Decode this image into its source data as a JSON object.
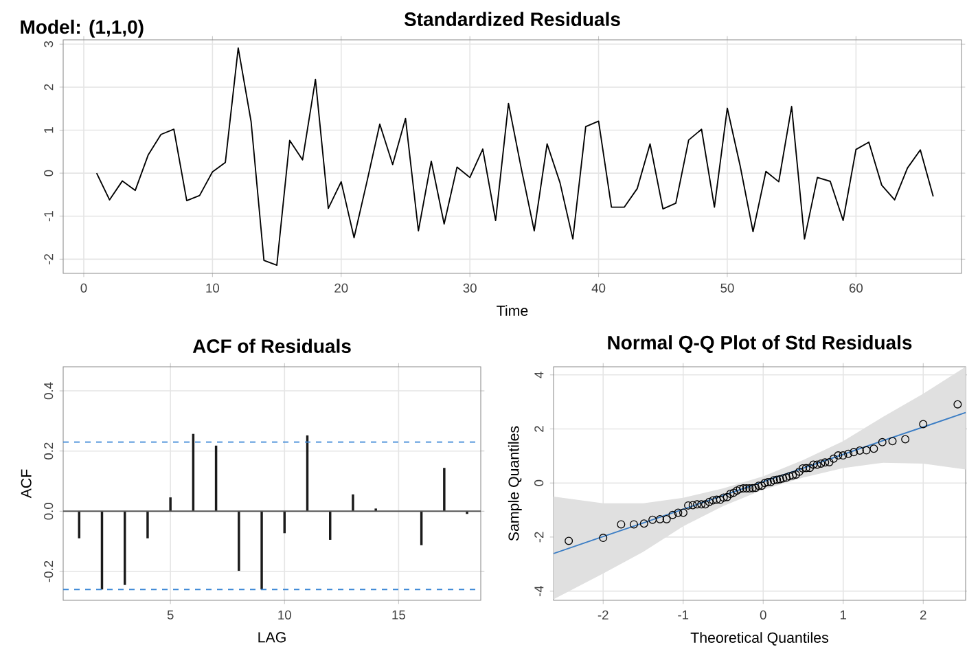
{
  "chart_data": [
    {
      "type": "line",
      "title": "Standardized Residuals",
      "xlabel": "Time",
      "annotations": [
        "Model: (1,1,0)"
      ],
      "x": [
        1,
        2,
        3,
        4,
        5,
        6,
        7,
        8,
        9,
        10,
        11,
        12,
        13,
        14,
        15,
        16,
        17,
        18,
        19,
        20,
        21,
        22,
        23,
        24,
        25,
        26,
        27,
        28,
        29,
        30,
        31,
        32,
        33,
        34,
        35,
        36,
        37,
        38,
        39,
        40,
        41,
        42,
        43,
        44,
        45,
        46,
        47,
        48,
        49,
        50,
        51,
        52,
        53,
        54,
        55,
        56,
        57,
        58,
        59,
        60,
        61,
        62,
        63,
        64,
        65,
        66
      ],
      "values": [
        0.0,
        -0.62,
        -0.18,
        -0.4,
        0.42,
        0.9,
        1.02,
        -0.64,
        -0.52,
        0.03,
        0.25,
        2.91,
        1.2,
        -2.03,
        -2.14,
        0.76,
        0.31,
        2.18,
        -0.82,
        -0.2,
        -1.5,
        -0.2,
        1.14,
        0.2,
        1.27,
        -1.34,
        0.28,
        -1.18,
        0.14,
        -0.1,
        0.56,
        -1.1,
        1.62,
        0.1,
        -1.34,
        0.68,
        -0.22,
        -1.53,
        1.08,
        1.21,
        -0.79,
        -0.79,
        -0.36,
        0.68,
        -0.83,
        -0.7,
        0.77,
        1.02,
        -0.79,
        1.51,
        0.17,
        -1.36,
        0.04,
        -0.2,
        1.55,
        -1.53,
        -0.1,
        -0.19,
        -1.1,
        0.55,
        0.72,
        -0.28,
        -0.62,
        0.12,
        0.54,
        -0.54
      ],
      "color": "#000000",
      "xlim": [
        -1.6,
        68.2
      ],
      "ylim": [
        -2.33,
        3.1
      ],
      "xticks": [
        0,
        10,
        20,
        30,
        40,
        50,
        60
      ],
      "yticks": [
        -2,
        -1,
        0,
        1,
        2,
        3
      ],
      "grid": true
    },
    {
      "type": "bar",
      "title": "ACF of Residuals",
      "xlabel": "LAG",
      "ylabel": "ACF",
      "x": [
        1,
        2,
        3,
        4,
        5,
        6,
        7,
        8,
        9,
        10,
        11,
        12,
        13,
        14,
        15,
        16,
        17,
        18
      ],
      "values": [
        -0.09,
        -0.26,
        -0.245,
        -0.09,
        0.046,
        0.257,
        0.218,
        -0.198,
        -0.26,
        -0.073,
        0.252,
        -0.095,
        0.056,
        0.009,
        0.0,
        -0.113,
        0.144,
        -0.009
      ],
      "color": "#1a1a1a",
      "xlim": [
        0.3,
        18.6
      ],
      "ylim": [
        -0.296,
        0.48
      ],
      "xticks": [
        5,
        10,
        15
      ],
      "yticks": [
        -0.2,
        {
          "value": 0,
          "label": "0.0"
        },
        0.2,
        0.4
      ],
      "grid": true,
      "ref_lines": [
        {
          "axis": "y",
          "value": 0.23,
          "color": "#3a86d6",
          "line_style": "dashed"
        },
        {
          "axis": "y",
          "value": -0.26,
          "color": "#3a86d6",
          "line_style": "dashed"
        },
        {
          "axis": "y",
          "value": 0,
          "color": "#555555",
          "line_style": "solid"
        }
      ]
    },
    {
      "type": "scatter",
      "title": "Normal Q-Q Plot of Std Residuals",
      "xlabel": "Theoretical Quantiles",
      "ylabel": "Sample Quantiles",
      "series": [
        {
          "type": "line",
          "color": "#3b7dc4",
          "x": [
            -2.62,
            -2.0,
            -1.5,
            -1.0,
            -0.5,
            0,
            0.5,
            1.0,
            1.5,
            2.0,
            2.53
          ],
          "values": [
            -2.61,
            -1.98,
            -1.48,
            -0.97,
            -0.46,
            0.05,
            0.55,
            1.06,
            1.57,
            2.07,
            2.61
          ],
          "lower": [
            -4.3,
            -3.35,
            -2.55,
            -1.6,
            -0.85,
            -0.25,
            0.2,
            0.55,
            0.75,
            0.72,
            0.5
          ],
          "upper": [
            -0.5,
            -0.75,
            -0.75,
            -0.55,
            -0.2,
            0.25,
            0.85,
            1.55,
            2.45,
            3.3,
            4.3
          ]
        },
        {
          "type": "scatter",
          "marker": "circle",
          "color": "#000000",
          "x": [
            -2.43,
            -2.0,
            -1.776,
            -1.616,
            -1.489,
            -1.383,
            -1.29,
            -1.207,
            -1.132,
            -1.063,
            -0.998,
            -0.937,
            -0.88,
            -0.826,
            -0.773,
            -0.723,
            -0.674,
            -0.627,
            -0.582,
            -0.537,
            -0.494,
            -0.451,
            -0.41,
            -0.369,
            -0.328,
            -0.289,
            -0.249,
            -0.21,
            -0.172,
            -0.133,
            -0.095,
            -0.057,
            -0.019,
            0.019,
            0.057,
            0.095,
            0.133,
            0.172,
            0.21,
            0.249,
            0.289,
            0.328,
            0.369,
            0.41,
            0.451,
            0.494,
            0.537,
            0.582,
            0.627,
            0.674,
            0.723,
            0.773,
            0.826,
            0.88,
            0.937,
            0.998,
            1.063,
            1.132,
            1.207,
            1.29,
            1.383,
            1.489,
            1.616,
            1.776,
            2.0,
            2.43
          ],
          "values": [
            -2.14,
            -2.03,
            -1.53,
            -1.53,
            -1.5,
            -1.36,
            -1.34,
            -1.34,
            -1.18,
            -1.1,
            -1.1,
            -0.83,
            -0.82,
            -0.79,
            -0.79,
            -0.79,
            -0.7,
            -0.64,
            -0.62,
            -0.62,
            -0.54,
            -0.52,
            -0.4,
            -0.36,
            -0.28,
            -0.22,
            -0.2,
            -0.2,
            -0.2,
            -0.19,
            -0.18,
            -0.1,
            -0.1,
            0.0,
            0.03,
            0.04,
            0.1,
            0.12,
            0.14,
            0.17,
            0.2,
            0.25,
            0.28,
            0.31,
            0.42,
            0.54,
            0.55,
            0.56,
            0.68,
            0.68,
            0.72,
            0.76,
            0.77,
            0.9,
            1.02,
            1.02,
            1.08,
            1.14,
            1.2,
            1.21,
            1.27,
            1.51,
            1.55,
            1.62,
            2.18,
            2.91
          ]
        }
      ],
      "xlim": [
        -2.62,
        2.53
      ],
      "ylim": [
        -4.34,
        4.3
      ],
      "xticks": [
        -2,
        -1,
        0,
        1,
        2
      ],
      "yticks": [
        -4,
        -2,
        0,
        2,
        4
      ],
      "grid": true
    }
  ]
}
